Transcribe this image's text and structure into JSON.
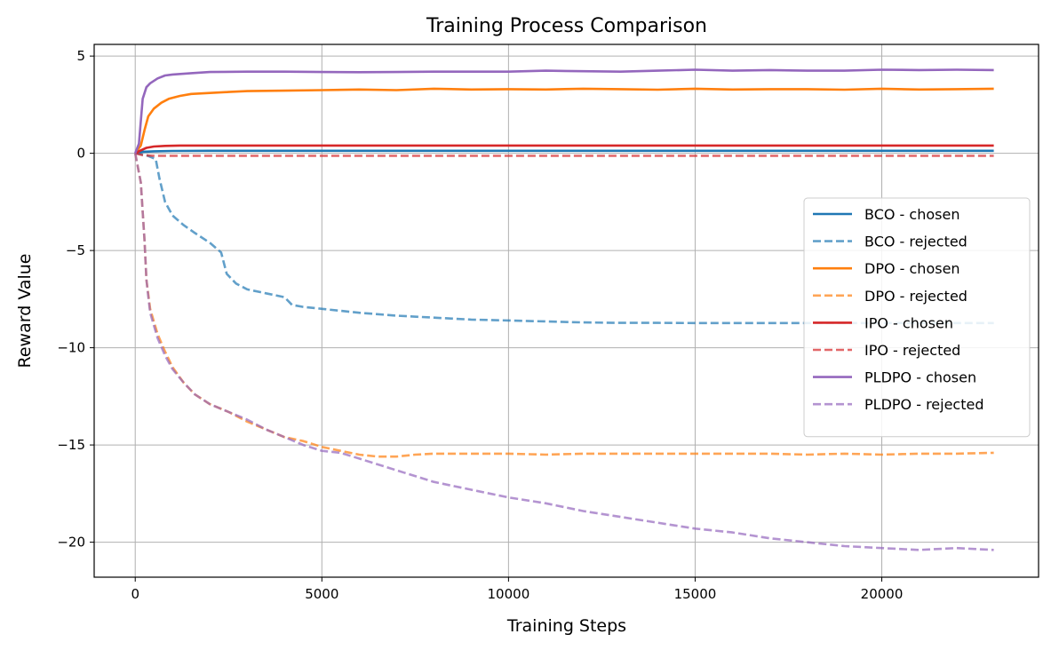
{
  "chart_data": {
    "type": "line",
    "title": "Training Process Comparison",
    "xlabel": "Training Steps",
    "ylabel": "Reward Value",
    "xlim": [
      -1100,
      24200
    ],
    "ylim": [
      -21.8,
      5.6
    ],
    "xticks": [
      0,
      5000,
      10000,
      15000,
      20000
    ],
    "yticks": [
      5,
      0,
      -5,
      -10,
      -15,
      -20
    ],
    "xtick_labels": [
      "0",
      "5000",
      "10000",
      "15000",
      "20000"
    ],
    "ytick_labels": [
      "5",
      "0",
      "−5",
      "−10",
      "−15",
      "−20"
    ],
    "grid": true,
    "legend_position": "center-right",
    "series": [
      {
        "name": "BCO - chosen",
        "color": "#1f77b4",
        "dash": "solid",
        "alpha": 1,
        "x": [
          0,
          200,
          500,
          1000,
          2000,
          5000,
          10000,
          15000,
          20000,
          23000
        ],
        "y": [
          0,
          0.08,
          0.1,
          0.12,
          0.13,
          0.13,
          0.13,
          0.13,
          0.13,
          0.13
        ]
      },
      {
        "name": "BCO - rejected",
        "color": "#1f77b4",
        "dash": "dashed",
        "alpha": 0.7,
        "x": [
          0,
          300,
          550,
          650,
          800,
          1000,
          1300,
          1600,
          2000,
          2300,
          2450,
          2700,
          3000,
          3500,
          4000,
          4200,
          4500,
          5000,
          6000,
          7000,
          8000,
          9000,
          10000,
          11000,
          12000,
          13000,
          14000,
          15000,
          16000,
          18000,
          20000,
          22000,
          23000
        ],
        "y": [
          0,
          -0.1,
          -0.3,
          -1.3,
          -2.5,
          -3.2,
          -3.7,
          -4.1,
          -4.6,
          -5.1,
          -6.2,
          -6.7,
          -7.0,
          -7.2,
          -7.4,
          -7.8,
          -7.9,
          -8.0,
          -8.2,
          -8.35,
          -8.45,
          -8.55,
          -8.6,
          -8.65,
          -8.7,
          -8.72,
          -8.72,
          -8.73,
          -8.73,
          -8.73,
          -8.73,
          -8.73,
          -8.73
        ]
      },
      {
        "name": "DPO - chosen",
        "color": "#ff7f0e",
        "dash": "solid",
        "alpha": 1,
        "x": [
          0,
          150,
          250,
          350,
          500,
          700,
          900,
          1200,
          1500,
          2000,
          2500,
          3000,
          4000,
          5000,
          6000,
          7000,
          8000,
          9000,
          10000,
          11000,
          12000,
          13000,
          14000,
          15000,
          16000,
          17000,
          18000,
          19000,
          20000,
          21000,
          22000,
          23000
        ],
        "y": [
          0,
          0.4,
          1.2,
          1.9,
          2.3,
          2.6,
          2.8,
          2.95,
          3.05,
          3.1,
          3.15,
          3.2,
          3.22,
          3.25,
          3.28,
          3.25,
          3.32,
          3.28,
          3.3,
          3.28,
          3.32,
          3.3,
          3.27,
          3.32,
          3.28,
          3.3,
          3.3,
          3.27,
          3.32,
          3.28,
          3.3,
          3.32
        ]
      },
      {
        "name": "DPO - rejected",
        "color": "#ff7f0e",
        "dash": "dashed",
        "alpha": 0.7,
        "x": [
          0,
          150,
          250,
          300,
          400,
          600,
          800,
          1000,
          1300,
          1600,
          2000,
          2500,
          3000,
          3500,
          4000,
          4500,
          5000,
          5500,
          6000,
          6500,
          7000,
          7500,
          8000,
          9000,
          10000,
          11000,
          12000,
          13000,
          14000,
          15000,
          16000,
          17000,
          18000,
          19000,
          20000,
          21000,
          22000,
          23000
        ],
        "y": [
          0,
          -1.5,
          -4.5,
          -6.5,
          -8.0,
          -9.3,
          -10.2,
          -11.0,
          -11.8,
          -12.4,
          -12.9,
          -13.3,
          -13.8,
          -14.2,
          -14.6,
          -14.8,
          -15.1,
          -15.3,
          -15.5,
          -15.6,
          -15.6,
          -15.5,
          -15.45,
          -15.45,
          -15.45,
          -15.5,
          -15.45,
          -15.45,
          -15.45,
          -15.45,
          -15.45,
          -15.45,
          -15.5,
          -15.45,
          -15.5,
          -15.45,
          -15.45,
          -15.4
        ]
      },
      {
        "name": "IPO - chosen",
        "color": "#d62728",
        "dash": "solid",
        "alpha": 1,
        "x": [
          0,
          150,
          300,
          500,
          800,
          1200,
          2000,
          5000,
          10000,
          15000,
          20000,
          23000
        ],
        "y": [
          0,
          0.15,
          0.28,
          0.35,
          0.38,
          0.4,
          0.4,
          0.4,
          0.4,
          0.4,
          0.4,
          0.4
        ]
      },
      {
        "name": "IPO - rejected",
        "color": "#d62728",
        "dash": "dashed",
        "alpha": 0.7,
        "x": [
          0,
          200,
          500,
          1000,
          5000,
          10000,
          15000,
          20000,
          23000
        ],
        "y": [
          0,
          -0.1,
          -0.13,
          -0.13,
          -0.13,
          -0.13,
          -0.13,
          -0.13,
          -0.13
        ]
      },
      {
        "name": "PLDPO - chosen",
        "color": "#9467bd",
        "dash": "solid",
        "alpha": 1,
        "x": [
          0,
          100,
          200,
          300,
          400,
          600,
          800,
          1000,
          1500,
          2000,
          3000,
          4000,
          5000,
          6000,
          7000,
          8000,
          9000,
          10000,
          11000,
          12000,
          13000,
          14000,
          15000,
          16000,
          17000,
          18000,
          19000,
          20000,
          21000,
          22000,
          23000
        ],
        "y": [
          0,
          0.5,
          2.8,
          3.4,
          3.6,
          3.85,
          4.0,
          4.05,
          4.12,
          4.18,
          4.2,
          4.2,
          4.18,
          4.17,
          4.18,
          4.2,
          4.2,
          4.2,
          4.25,
          4.22,
          4.2,
          4.25,
          4.3,
          4.25,
          4.28,
          4.25,
          4.25,
          4.3,
          4.28,
          4.3,
          4.28
        ]
      },
      {
        "name": "PLDPO - rejected",
        "color": "#9467bd",
        "dash": "dashed",
        "alpha": 0.7,
        "x": [
          0,
          150,
          250,
          300,
          400,
          600,
          800,
          1000,
          1300,
          1600,
          2000,
          2500,
          3000,
          3500,
          4000,
          4500,
          5000,
          5500,
          6000,
          7000,
          8000,
          9000,
          10000,
          11000,
          12000,
          13000,
          14000,
          15000,
          16000,
          17000,
          18000,
          19000,
          20000,
          21000,
          22000,
          23000
        ],
        "y": [
          0,
          -1.5,
          -4.5,
          -6.5,
          -8.2,
          -9.5,
          -10.4,
          -11.1,
          -11.8,
          -12.4,
          -12.9,
          -13.3,
          -13.7,
          -14.2,
          -14.6,
          -15.0,
          -15.3,
          -15.4,
          -15.7,
          -16.3,
          -16.9,
          -17.3,
          -17.7,
          -18.0,
          -18.4,
          -18.7,
          -19.0,
          -19.3,
          -19.5,
          -19.8,
          -20.0,
          -20.2,
          -20.3,
          -20.4,
          -20.3,
          -20.4
        ]
      }
    ]
  }
}
